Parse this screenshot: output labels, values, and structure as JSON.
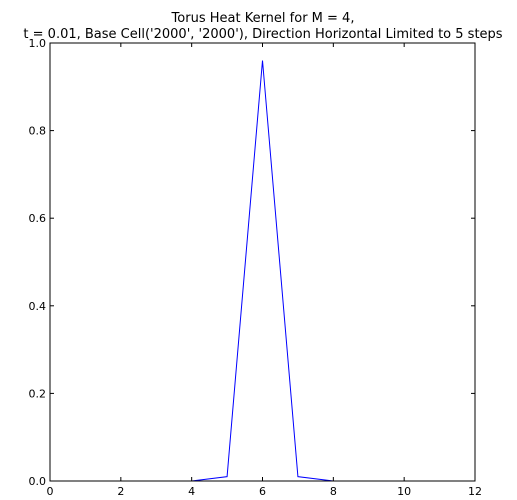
{
  "chart_data": {
    "type": "line",
    "title_line1": "Torus Heat Kernel for M = 4,",
    "title_line2": "t = 0.01, Base Cell('2000', '2000'), Direction Horizontal Limited to 5 steps",
    "xlabel": "",
    "ylabel": "",
    "xlim": [
      0,
      12
    ],
    "ylim": [
      0,
      1.0
    ],
    "xticks": [
      0,
      2,
      4,
      6,
      8,
      10,
      12
    ],
    "xtick_labels": [
      "0",
      "2",
      "4",
      "6",
      "8",
      "10",
      "12"
    ],
    "yticks": [
      0.0,
      0.2,
      0.4,
      0.6,
      0.8,
      1.0
    ],
    "ytick_labels": [
      "0.0",
      "0.2",
      "0.4",
      "0.6",
      "0.8",
      "1.0"
    ],
    "grid": false,
    "series": [
      {
        "color": "#0000ff",
        "x": [
          1,
          2,
          3,
          4,
          5,
          6,
          7,
          8,
          9,
          10,
          11
        ],
        "y": [
          0.0,
          0.0,
          0.0,
          0.0,
          0.01,
          0.96,
          0.01,
          0.0,
          0.0,
          0.0,
          0.0
        ]
      }
    ]
  }
}
